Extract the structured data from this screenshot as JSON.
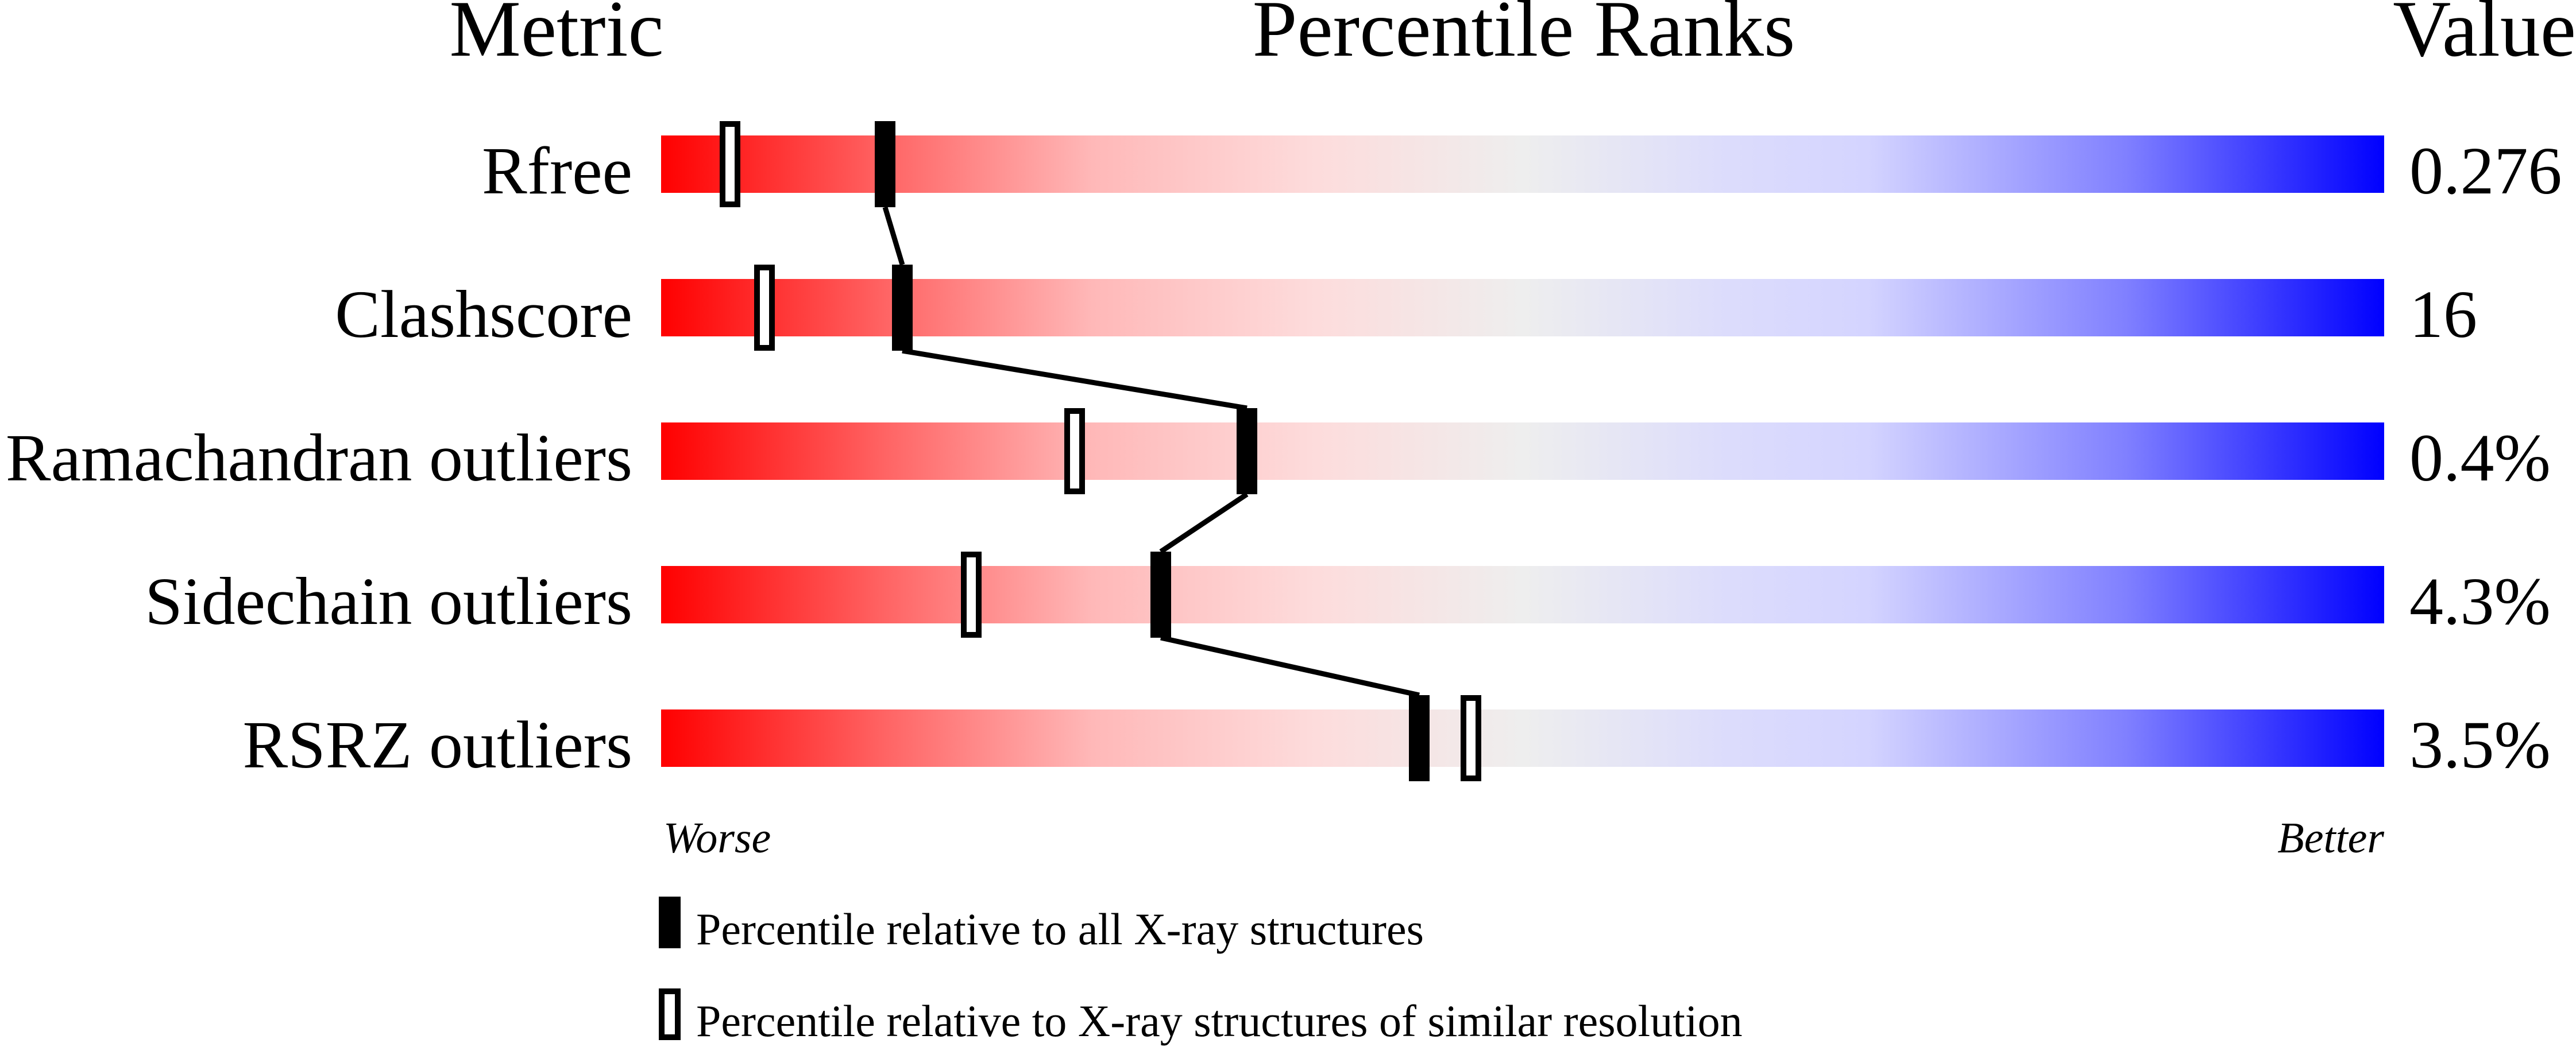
{
  "header": {
    "metric": "Metric",
    "percentile_ranks": "Percentile Ranks",
    "value": "Value"
  },
  "axis": {
    "worse": "Worse",
    "better": "Better"
  },
  "legend": {
    "all": "Percentile relative to all X-ray structures",
    "similar": "Percentile relative to X-ray structures of similar resolution"
  },
  "colors": {
    "worse": "#ff0000",
    "neutral": "#eeeeee",
    "better": "#0000ff",
    "marker": "#000000"
  },
  "chart_data": {
    "type": "percentile-slider",
    "xlim": [
      0,
      100
    ],
    "series": [
      {
        "name": "Percentile relative to all X-ray structures",
        "marker": "filled"
      },
      {
        "name": "Percentile relative to X-ray structures of similar resolution",
        "marker": "open"
      }
    ],
    "metrics": [
      {
        "label": "Rfree",
        "value": "0.276",
        "percentile_all": 13,
        "percentile_similar": 4
      },
      {
        "label": "Clashscore",
        "value": "16",
        "percentile_all": 14,
        "percentile_similar": 6
      },
      {
        "label": "Ramachandran outliers",
        "value": "0.4%",
        "percentile_all": 34,
        "percentile_similar": 24
      },
      {
        "label": "Sidechain outliers",
        "value": "4.3%",
        "percentile_all": 29,
        "percentile_similar": 18
      },
      {
        "label": "RSRZ outliers",
        "value": "3.5%",
        "percentile_all": 44,
        "percentile_similar": 47
      }
    ]
  }
}
